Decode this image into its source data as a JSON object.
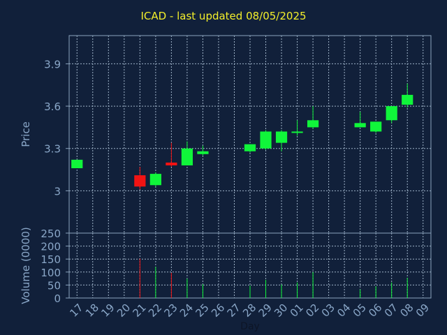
{
  "title": "ICAD - last updated 08/05/2025",
  "colors": {
    "background": "#11203a",
    "plot_border": "#8aa3bd",
    "grid": "#9fb3c8",
    "label": "#8aa7c8",
    "title": "#f4ef2b",
    "up": "#10f53a",
    "down": "#f21313"
  },
  "chart_data": [
    {
      "type": "candlestick",
      "title": "ICAD - last updated 08/05/2025",
      "ylabel": "Price",
      "ylim": [
        2.7,
        4.1
      ],
      "yticks": [
        3,
        3.3,
        3.6,
        3.9
      ],
      "ytick_labels": [
        "3",
        "3.3",
        "3.6",
        "3.9"
      ],
      "categories": [
        "17",
        "18",
        "19",
        "20",
        "21",
        "22",
        "23",
        "24",
        "25",
        "26",
        "27",
        "28",
        "29",
        "30",
        "01",
        "02",
        "03",
        "04",
        "05",
        "06",
        "07",
        "08",
        "09"
      ],
      "grid": true,
      "candles": [
        {
          "day": "17",
          "open": 3.16,
          "close": 3.22,
          "high": 3.22,
          "low": 3.16
        },
        {
          "day": "21",
          "open": 3.11,
          "close": 3.03,
          "high": 3.17,
          "low": 3.01
        },
        {
          "day": "22",
          "open": 3.04,
          "close": 3.12,
          "high": 3.13,
          "low": 3.03
        },
        {
          "day": "23",
          "open": 3.2,
          "close": 3.18,
          "high": 3.34,
          "low": 3.17
        },
        {
          "day": "24",
          "open": 3.18,
          "close": 3.3,
          "high": 3.35,
          "low": 3.18
        },
        {
          "day": "25",
          "open": 3.26,
          "close": 3.28,
          "high": 3.32,
          "low": 3.25
        },
        {
          "day": "28",
          "open": 3.28,
          "close": 3.33,
          "high": 3.33,
          "low": 3.27
        },
        {
          "day": "29",
          "open": 3.3,
          "close": 3.42,
          "high": 3.43,
          "low": 3.29
        },
        {
          "day": "30",
          "open": 3.34,
          "close": 3.42,
          "high": 3.43,
          "low": 3.28
        },
        {
          "day": "01",
          "open": 3.41,
          "close": 3.42,
          "high": 3.5,
          "low": 3.39
        },
        {
          "day": "02",
          "open": 3.45,
          "close": 3.5,
          "high": 3.6,
          "low": 3.44
        },
        {
          "day": "05",
          "open": 3.45,
          "close": 3.48,
          "high": 3.56,
          "low": 3.45
        },
        {
          "day": "06",
          "open": 3.42,
          "close": 3.49,
          "high": 3.49,
          "low": 3.41
        },
        {
          "day": "07",
          "open": 3.5,
          "close": 3.6,
          "high": 3.6,
          "low": 3.48
        },
        {
          "day": "08",
          "open": 3.61,
          "close": 3.68,
          "high": 3.76,
          "low": 3.59
        }
      ]
    },
    {
      "type": "bar",
      "ylabel": "Volume (0000)",
      "xlabel": "Day",
      "ylim": [
        0,
        250
      ],
      "yticks": [
        0,
        50,
        100,
        150,
        200,
        250
      ],
      "ytick_labels": [
        "0",
        "50",
        "100",
        "150",
        "200",
        "250"
      ],
      "categories": [
        "17",
        "18",
        "19",
        "20",
        "21",
        "22",
        "23",
        "24",
        "25",
        "26",
        "27",
        "28",
        "29",
        "30",
        "01",
        "02",
        "03",
        "04",
        "05",
        "06",
        "07",
        "08",
        "09"
      ],
      "grid": true,
      "bars": [
        {
          "day": "21",
          "value": 152,
          "direction": "down"
        },
        {
          "day": "22",
          "value": 120,
          "direction": "up"
        },
        {
          "day": "23",
          "value": 97,
          "direction": "down"
        },
        {
          "day": "24",
          "value": 75,
          "direction": "up"
        },
        {
          "day": "25",
          "value": 53,
          "direction": "up"
        },
        {
          "day": "28",
          "value": 48,
          "direction": "up"
        },
        {
          "day": "29",
          "value": 70,
          "direction": "up"
        },
        {
          "day": "30",
          "value": 52,
          "direction": "up"
        },
        {
          "day": "01",
          "value": 60,
          "direction": "up"
        },
        {
          "day": "02",
          "value": 100,
          "direction": "up"
        },
        {
          "day": "05",
          "value": 33,
          "direction": "up"
        },
        {
          "day": "06",
          "value": 45,
          "direction": "up"
        },
        {
          "day": "07",
          "value": 60,
          "direction": "up"
        },
        {
          "day": "08",
          "value": 78,
          "direction": "up"
        }
      ]
    }
  ]
}
